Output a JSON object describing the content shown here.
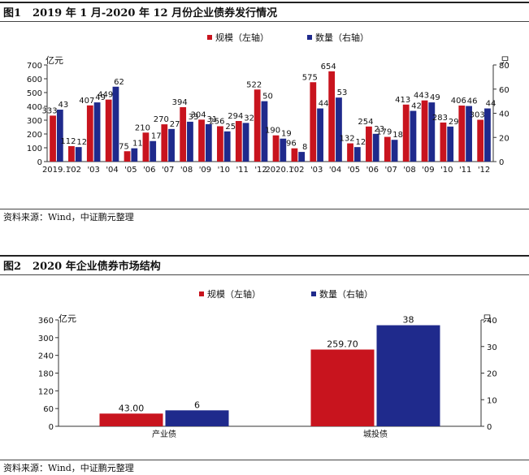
{
  "figures": [
    {
      "number": "图1",
      "title": "2019 年 1 月-2020 年 12 月份企业债券发行情况",
      "source": "资料来源：Wind，中证鹏元整理"
    },
    {
      "number": "图2",
      "title": "2020 年企业债券市场结构",
      "source": "资料来源：Wind，中证鹏元整理"
    }
  ],
  "colors": {
    "scale": "#c8141e",
    "count": "#1f2a8c"
  },
  "chart_data": [
    {
      "type": "bar",
      "categories": [
        "2019.1",
        "'02",
        "'03",
        "'04",
        "'05",
        "'06",
        "'07",
        "'08",
        "'09",
        "'10",
        "'11",
        "'12",
        "2020.1",
        "'02",
        "'03",
        "'04",
        "'05",
        "'06",
        "'07",
        "'08",
        "'09",
        "'10",
        "'11",
        "'12"
      ],
      "series": [
        {
          "name": "规模（左轴）",
          "axis": "left",
          "values": [
            333,
            112,
            407,
            449,
            75,
            210,
            270,
            394,
            304,
            256,
            294,
            522,
            190,
            96,
            575,
            654,
            132,
            254,
            179,
            413,
            443,
            283,
            406,
            303
          ],
          "labels": [
            "333",
            "112",
            "407",
            "449",
            "75",
            "210",
            "270",
            "394",
            "304",
            "256",
            "294",
            "522",
            "190",
            "96",
            "575",
            "654",
            "132",
            "254",
            "179",
            "413",
            "443",
            "283",
            "406",
            "303"
          ]
        },
        {
          "name": "数量（右轴）",
          "axis": "right",
          "values": [
            43,
            12,
            49,
            62,
            11,
            17,
            27,
            33,
            31,
            25,
            32,
            50,
            19,
            8,
            44,
            53,
            12,
            23,
            18,
            42,
            49,
            29,
            46,
            44
          ],
          "labels": [
            "43",
            "12",
            "49",
            "62",
            "11",
            "17",
            "27",
            "33",
            "31",
            "25",
            "32",
            "50",
            "19",
            "8",
            "44",
            "53",
            "12",
            "23",
            "18",
            "42",
            "49",
            "29",
            "46",
            "44"
          ]
        }
      ],
      "y_left": {
        "label": "亿元",
        "ticks": [
          "0",
          "100",
          "200",
          "300",
          "400",
          "500",
          "600",
          "700"
        ],
        "lim": [
          0,
          700
        ]
      },
      "y_right": {
        "label": "只",
        "ticks": [
          "0",
          "20",
          "40",
          "60",
          "80"
        ],
        "lim": [
          0,
          80
        ]
      },
      "legend_position": "top"
    },
    {
      "type": "bar",
      "categories": [
        "产业债",
        "城投债"
      ],
      "series": [
        {
          "name": "规模（左轴）",
          "axis": "left",
          "values": [
            43.0,
            259.7
          ],
          "labels": [
            "43.00",
            "259.70"
          ]
        },
        {
          "name": "数量（右轴）",
          "axis": "right",
          "values": [
            6,
            38
          ],
          "labels": [
            "6",
            "38"
          ]
        }
      ],
      "y_left": {
        "label": "亿元",
        "ticks": [
          "0",
          "60",
          "120",
          "180",
          "240",
          "300",
          "360"
        ],
        "lim": [
          0,
          360
        ]
      },
      "y_right": {
        "label": "只",
        "ticks": [
          "0",
          "10",
          "20",
          "30",
          "40"
        ],
        "lim": [
          0,
          40
        ]
      },
      "legend_position": "top"
    }
  ]
}
